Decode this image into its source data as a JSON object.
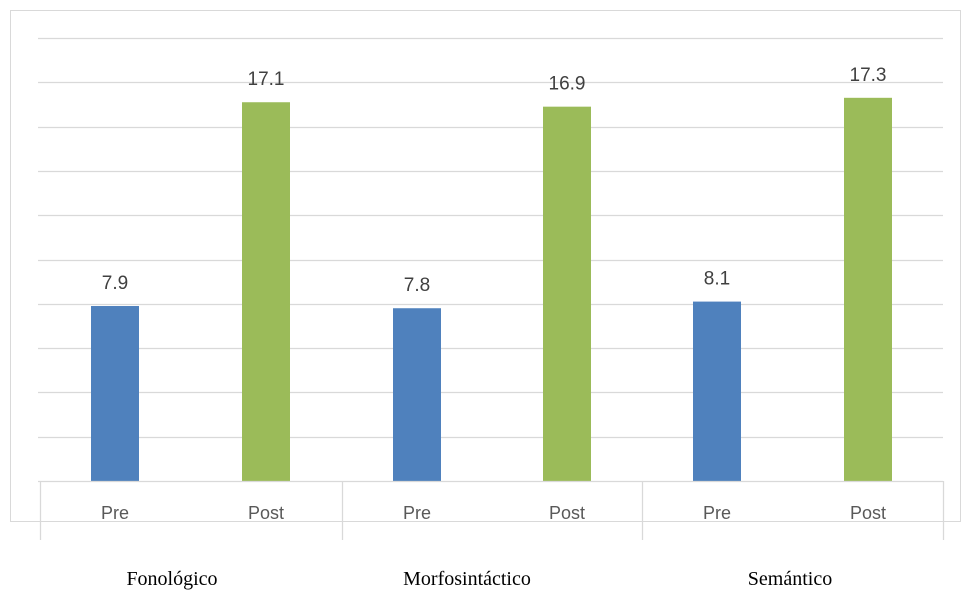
{
  "chart_data": {
    "type": "bar",
    "groups": [
      "Fonológico",
      "Morfosintáctico",
      "Semántico"
    ],
    "categories": [
      "Pre",
      "Post",
      "Pre",
      "Post",
      "Pre",
      "Post"
    ],
    "values": [
      7.9,
      17.1,
      7.8,
      16.9,
      8.1,
      17.3
    ],
    "value_labels": [
      "7.9",
      "17.1",
      "7.8",
      "16.9",
      "8.1",
      "17.3"
    ],
    "bar_colors": [
      "#4f81bd",
      "#9bbb59",
      "#4f81bd",
      "#9bbb59",
      "#4f81bd",
      "#9bbb59"
    ],
    "ylim": [
      0,
      20
    ],
    "y_step": 2,
    "grid": true,
    "legend": "none"
  }
}
